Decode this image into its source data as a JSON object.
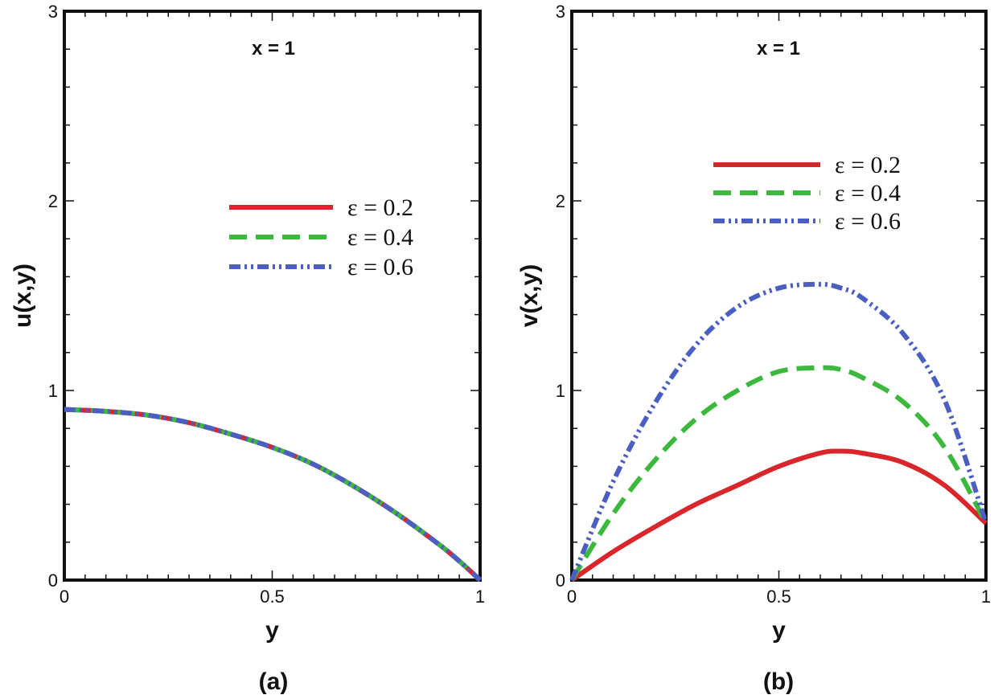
{
  "chart_data": [
    {
      "type": "line",
      "panel_label": "(a)",
      "annotation": "x = 1",
      "xlabel": "y",
      "ylabel": "u(x,y)",
      "xlim": [
        0,
        1
      ],
      "ylim": [
        0,
        3
      ],
      "xticks": [
        0,
        0.5,
        1
      ],
      "xtick_labels": [
        "0",
        "0.5",
        "1"
      ],
      "yticks": [
        0,
        1,
        2,
        3
      ],
      "ytick_labels": [
        "0",
        "1",
        "2",
        "3"
      ],
      "legend_position": "center-right",
      "x": [
        0,
        0.1,
        0.2,
        0.3,
        0.4,
        0.5,
        0.6,
        0.7,
        0.8,
        0.9,
        0.95,
        1
      ],
      "series": [
        {
          "name": "ε = 0.2",
          "color": "#d9262b",
          "style": "solid",
          "values": [
            0.9,
            0.89,
            0.87,
            0.83,
            0.77,
            0.7,
            0.61,
            0.49,
            0.35,
            0.19,
            0.1,
            0.0
          ]
        },
        {
          "name": "ε = 0.4",
          "color": "#3cb83c",
          "style": "dash",
          "values": [
            0.9,
            0.89,
            0.87,
            0.83,
            0.77,
            0.7,
            0.61,
            0.49,
            0.35,
            0.19,
            0.1,
            0.0
          ]
        },
        {
          "name": "ε = 0.6",
          "color": "#4a5fc1",
          "style": "dash-dot-dot",
          "values": [
            0.9,
            0.89,
            0.87,
            0.83,
            0.77,
            0.7,
            0.61,
            0.49,
            0.35,
            0.19,
            0.1,
            0.0
          ]
        }
      ]
    },
    {
      "type": "line",
      "panel_label": "(b)",
      "annotation": "x = 1",
      "xlabel": "y",
      "ylabel": "v(x,y)",
      "xlim": [
        0,
        1
      ],
      "ylim": [
        0,
        3
      ],
      "xticks": [
        0,
        0.5,
        1
      ],
      "xtick_labels": [
        "0",
        "0.5",
        "1"
      ],
      "yticks": [
        0,
        1,
        2,
        3
      ],
      "ytick_labels": [
        "0",
        "1",
        "2",
        "3"
      ],
      "legend_position": "upper-right",
      "x": [
        0,
        0.1,
        0.2,
        0.3,
        0.4,
        0.5,
        0.6,
        0.65,
        0.7,
        0.8,
        0.9,
        1
      ],
      "series": [
        {
          "name": "ε = 0.2",
          "color": "#d9262b",
          "style": "solid",
          "values": [
            0.0,
            0.15,
            0.28,
            0.4,
            0.5,
            0.6,
            0.67,
            0.68,
            0.67,
            0.62,
            0.5,
            0.3
          ]
        },
        {
          "name": "ε = 0.4",
          "color": "#3cb83c",
          "style": "dash",
          "values": [
            0.0,
            0.35,
            0.63,
            0.85,
            1.0,
            1.1,
            1.12,
            1.11,
            1.07,
            0.94,
            0.7,
            0.3
          ]
        },
        {
          "name": "ε = 0.6",
          "color": "#4a5fc1",
          "style": "dash-dot-dot",
          "values": [
            0.0,
            0.52,
            0.93,
            1.24,
            1.44,
            1.54,
            1.56,
            1.54,
            1.49,
            1.3,
            0.95,
            0.3
          ]
        }
      ]
    }
  ]
}
